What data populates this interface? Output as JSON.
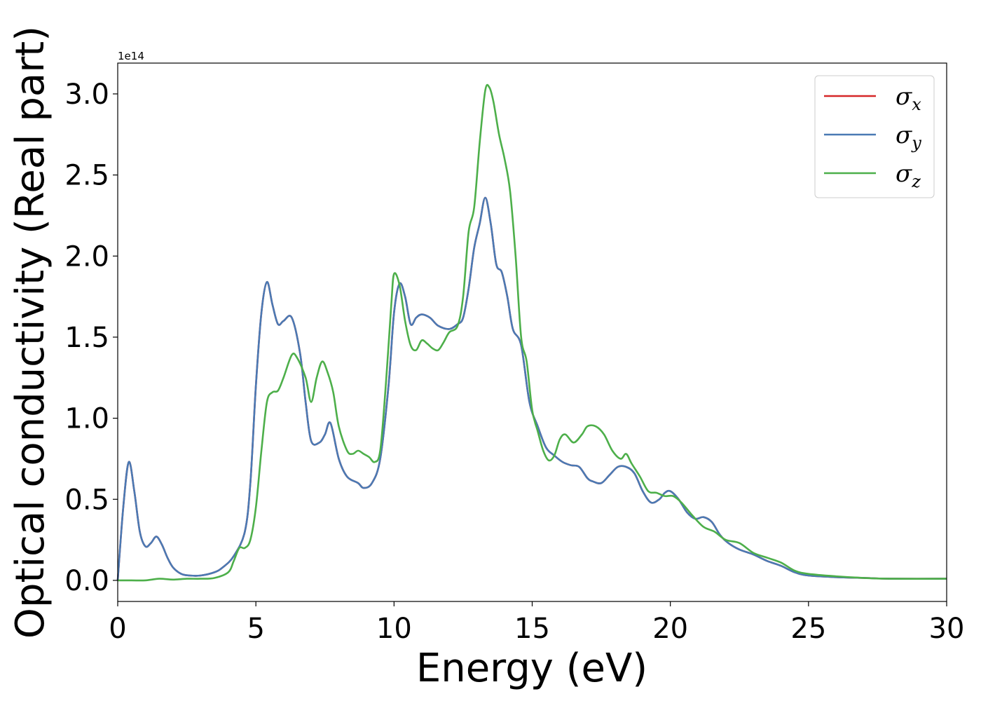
{
  "chart_data": {
    "type": "line",
    "title": "",
    "xlabel": "Energy (eV)",
    "ylabel": "Optical conductivity (Real part)",
    "y_offset_label": "1e14",
    "xlim": [
      0,
      30
    ],
    "ylim": [
      -0.13,
      3.19
    ],
    "x_ticks": [
      0,
      5,
      10,
      15,
      20,
      25,
      30
    ],
    "y_ticks": [
      0.0,
      0.5,
      1.0,
      1.5,
      2.0,
      2.5,
      3.0
    ],
    "x_tick_labels": [
      "0",
      "5",
      "10",
      "15",
      "20",
      "25",
      "30"
    ],
    "y_tick_labels": [
      "0.0",
      "0.5",
      "1.0",
      "1.5",
      "2.0",
      "2.5",
      "3.0"
    ],
    "grid": false,
    "legend_position": "top-right",
    "series": [
      {
        "name": "σx",
        "legend_symbol": "σ",
        "legend_subscript": "x",
        "color": "#d62728",
        "x": [
          0,
          0.2,
          0.4,
          0.6,
          0.8,
          1.0,
          1.2,
          1.4,
          1.6,
          1.8,
          2.0,
          2.3,
          2.6,
          3.0,
          3.5,
          3.8,
          4.2,
          4.6,
          4.8,
          5.0,
          5.2,
          5.4,
          5.6,
          5.8,
          6.0,
          6.3,
          6.6,
          6.8,
          7.0,
          7.3,
          7.5,
          7.7,
          8.0,
          8.3,
          8.7,
          8.9,
          9.2,
          9.5,
          9.8,
          10.0,
          10.2,
          10.4,
          10.6,
          10.8,
          11.0,
          11.3,
          11.6,
          12.0,
          12.3,
          12.5,
          12.7,
          12.9,
          13.1,
          13.3,
          13.5,
          13.7,
          13.9,
          14.1,
          14.3,
          14.6,
          14.9,
          15.2,
          15.5,
          15.8,
          16.1,
          16.4,
          16.7,
          17.0,
          17.2,
          17.5,
          17.8,
          18.1,
          18.4,
          18.7,
          19.0,
          19.3,
          19.6,
          19.8,
          20.0,
          20.3,
          20.6,
          20.9,
          21.2,
          21.5,
          21.8,
          22.1,
          22.5,
          23.0,
          23.5,
          24.0,
          24.5,
          25.0,
          26.0,
          27.0,
          28.0,
          30.0
        ],
        "values": [
          0.0,
          0.45,
          0.73,
          0.55,
          0.3,
          0.21,
          0.23,
          0.27,
          0.22,
          0.14,
          0.08,
          0.04,
          0.03,
          0.03,
          0.05,
          0.08,
          0.15,
          0.3,
          0.6,
          1.2,
          1.65,
          1.84,
          1.7,
          1.58,
          1.6,
          1.62,
          1.4,
          1.1,
          0.86,
          0.85,
          0.9,
          0.97,
          0.75,
          0.64,
          0.6,
          0.57,
          0.6,
          0.75,
          1.2,
          1.65,
          1.83,
          1.75,
          1.58,
          1.62,
          1.64,
          1.62,
          1.57,
          1.55,
          1.58,
          1.62,
          1.8,
          2.05,
          2.2,
          2.36,
          2.2,
          1.95,
          1.9,
          1.75,
          1.55,
          1.45,
          1.1,
          0.95,
          0.82,
          0.77,
          0.73,
          0.71,
          0.7,
          0.63,
          0.61,
          0.6,
          0.65,
          0.7,
          0.7,
          0.66,
          0.55,
          0.48,
          0.5,
          0.54,
          0.55,
          0.5,
          0.42,
          0.38,
          0.39,
          0.36,
          0.28,
          0.23,
          0.19,
          0.16,
          0.12,
          0.09,
          0.05,
          0.03,
          0.02,
          0.015,
          0.01,
          0.01
        ]
      },
      {
        "name": "σy",
        "legend_symbol": "σ",
        "legend_subscript": "y",
        "color": "#4a7ab4",
        "x": [
          0,
          0.2,
          0.4,
          0.6,
          0.8,
          1.0,
          1.2,
          1.4,
          1.6,
          1.8,
          2.0,
          2.3,
          2.6,
          3.0,
          3.5,
          3.8,
          4.2,
          4.6,
          4.8,
          5.0,
          5.2,
          5.4,
          5.6,
          5.8,
          6.0,
          6.3,
          6.6,
          6.8,
          7.0,
          7.3,
          7.5,
          7.7,
          8.0,
          8.3,
          8.7,
          8.9,
          9.2,
          9.5,
          9.8,
          10.0,
          10.2,
          10.4,
          10.6,
          10.8,
          11.0,
          11.3,
          11.6,
          12.0,
          12.3,
          12.5,
          12.7,
          12.9,
          13.1,
          13.3,
          13.5,
          13.7,
          13.9,
          14.1,
          14.3,
          14.6,
          14.9,
          15.2,
          15.5,
          15.8,
          16.1,
          16.4,
          16.7,
          17.0,
          17.2,
          17.5,
          17.8,
          18.1,
          18.4,
          18.7,
          19.0,
          19.3,
          19.6,
          19.8,
          20.0,
          20.3,
          20.6,
          20.9,
          21.2,
          21.5,
          21.8,
          22.1,
          22.5,
          23.0,
          23.5,
          24.0,
          24.5,
          25.0,
          26.0,
          27.0,
          28.0,
          30.0
        ],
        "values": [
          0.0,
          0.45,
          0.73,
          0.55,
          0.3,
          0.21,
          0.23,
          0.27,
          0.22,
          0.14,
          0.08,
          0.04,
          0.03,
          0.03,
          0.05,
          0.08,
          0.15,
          0.3,
          0.6,
          1.2,
          1.65,
          1.84,
          1.7,
          1.58,
          1.6,
          1.62,
          1.4,
          1.1,
          0.86,
          0.85,
          0.9,
          0.97,
          0.75,
          0.64,
          0.6,
          0.57,
          0.6,
          0.75,
          1.2,
          1.65,
          1.83,
          1.75,
          1.58,
          1.62,
          1.64,
          1.62,
          1.57,
          1.55,
          1.58,
          1.62,
          1.8,
          2.05,
          2.2,
          2.36,
          2.2,
          1.95,
          1.9,
          1.75,
          1.55,
          1.45,
          1.1,
          0.95,
          0.82,
          0.77,
          0.73,
          0.71,
          0.7,
          0.63,
          0.61,
          0.6,
          0.65,
          0.7,
          0.7,
          0.66,
          0.55,
          0.48,
          0.5,
          0.54,
          0.55,
          0.5,
          0.42,
          0.38,
          0.39,
          0.36,
          0.28,
          0.23,
          0.19,
          0.16,
          0.12,
          0.09,
          0.05,
          0.03,
          0.02,
          0.015,
          0.01,
          0.01
        ]
      },
      {
        "name": "σz",
        "legend_symbol": "σ",
        "legend_subscript": "z",
        "color": "#4daf4a",
        "x": [
          0,
          0.5,
          1.0,
          1.5,
          2.0,
          2.5,
          3.0,
          3.5,
          4.0,
          4.2,
          4.4,
          4.6,
          4.8,
          5.0,
          5.2,
          5.4,
          5.6,
          5.8,
          6.0,
          6.3,
          6.5,
          6.8,
          7.0,
          7.2,
          7.4,
          7.6,
          7.8,
          8.0,
          8.3,
          8.5,
          8.7,
          8.9,
          9.1,
          9.3,
          9.5,
          9.7,
          9.9,
          10.0,
          10.2,
          10.4,
          10.6,
          10.8,
          11.0,
          11.2,
          11.4,
          11.6,
          11.8,
          12.0,
          12.3,
          12.5,
          12.7,
          12.9,
          13.1,
          13.3,
          13.45,
          13.6,
          13.8,
          14.0,
          14.2,
          14.4,
          14.6,
          14.8,
          15.0,
          15.2,
          15.4,
          15.6,
          15.8,
          16.0,
          16.2,
          16.5,
          16.8,
          17.0,
          17.3,
          17.6,
          17.9,
          18.2,
          18.4,
          18.6,
          18.9,
          19.2,
          19.5,
          19.8,
          20.1,
          20.4,
          20.8,
          21.2,
          21.6,
          22.0,
          22.5,
          23.0,
          23.5,
          24.0,
          24.5,
          25.0,
          26.0,
          27.0,
          28.0,
          30.0
        ],
        "values": [
          0.0,
          0.0,
          0.0,
          0.01,
          0.005,
          0.01,
          0.01,
          0.015,
          0.05,
          0.12,
          0.2,
          0.2,
          0.25,
          0.45,
          0.8,
          1.1,
          1.16,
          1.17,
          1.25,
          1.39,
          1.37,
          1.25,
          1.1,
          1.25,
          1.35,
          1.28,
          1.16,
          0.95,
          0.8,
          0.78,
          0.8,
          0.78,
          0.76,
          0.73,
          0.8,
          1.2,
          1.7,
          1.89,
          1.82,
          1.6,
          1.45,
          1.42,
          1.48,
          1.46,
          1.43,
          1.42,
          1.47,
          1.53,
          1.57,
          1.75,
          2.15,
          2.3,
          2.7,
          3.02,
          3.04,
          2.95,
          2.75,
          2.6,
          2.4,
          2.0,
          1.5,
          1.35,
          1.05,
          0.92,
          0.8,
          0.74,
          0.77,
          0.87,
          0.9,
          0.85,
          0.9,
          0.95,
          0.95,
          0.9,
          0.8,
          0.75,
          0.78,
          0.72,
          0.64,
          0.55,
          0.54,
          0.52,
          0.52,
          0.48,
          0.4,
          0.33,
          0.3,
          0.25,
          0.23,
          0.17,
          0.14,
          0.11,
          0.06,
          0.04,
          0.025,
          0.015,
          0.01,
          0.01
        ]
      }
    ]
  }
}
